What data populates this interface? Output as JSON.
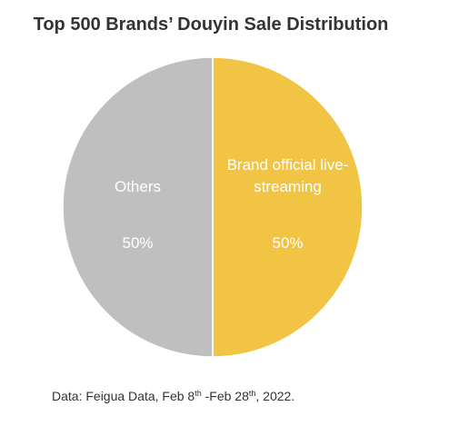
{
  "chart_data": {
    "type": "pie",
    "title": "Top 500 Brands’ Douyin Sale Distribution",
    "categories": [
      "Brand official live-streaming",
      "Others"
    ],
    "values": [
      50,
      50
    ],
    "value_labels": [
      "50%",
      "50%"
    ],
    "colors": [
      "#F2C443",
      "#BFBFBF"
    ],
    "source": [
      "Data: Feigua Data, Feb 8",
      "th",
      " -Feb 28",
      "th",
      ", 2022."
    ]
  }
}
